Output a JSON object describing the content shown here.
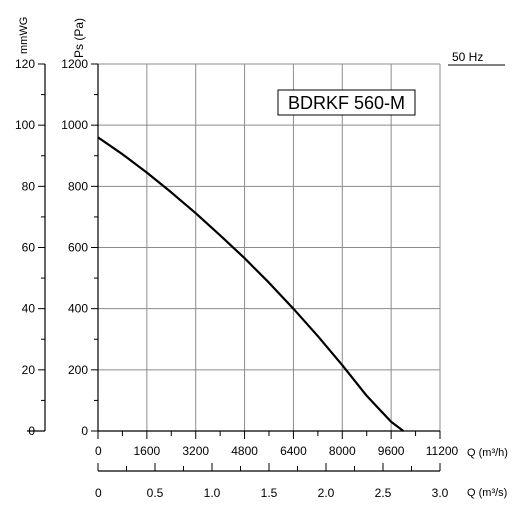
{
  "chart_data": {
    "type": "line",
    "title": "BDRKF 560-M",
    "frequency_label": "50 Hz",
    "left_axis_label": "mmWG",
    "right_axis_label": "Ps (Pa)",
    "left_ticks": [
      "0",
      "20",
      "40",
      "60",
      "80",
      "100",
      "120"
    ],
    "pa_ticks": [
      "0",
      "200",
      "400",
      "600",
      "800",
      "1000",
      "1200"
    ],
    "x_ticks": [
      "0",
      "1600",
      "3200",
      "4800",
      "6400",
      "8000",
      "9600",
      "11200"
    ],
    "xlabel": "Q (m³/h)",
    "x2_ticks": [
      "0",
      "0.5",
      "1.0",
      "1.5",
      "2.0",
      "2.5",
      "3.0"
    ],
    "x2label": "Q (m³/s)",
    "xlim": [
      0,
      11200
    ],
    "ylim": [
      0,
      1200
    ],
    "x2lim": [
      0,
      3.0
    ],
    "series": [
      {
        "x": [
          0,
          800,
          1600,
          2400,
          3200,
          4000,
          4800,
          5600,
          6400,
          7200,
          8000,
          8800,
          9600,
          10000,
          10300
        ],
        "y": [
          960,
          905,
          845,
          780,
          712,
          640,
          565,
          485,
          400,
          310,
          215,
          115,
          30,
          0,
          0
        ]
      }
    ]
  }
}
